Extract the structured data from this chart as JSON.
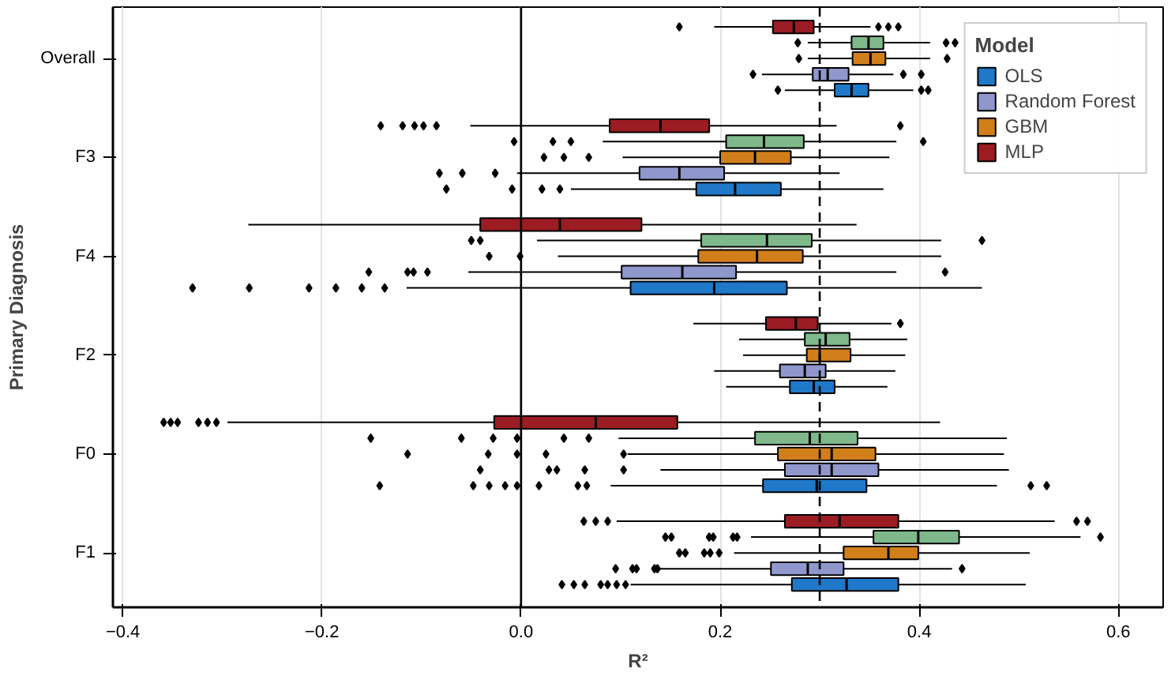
{
  "chart_data": {
    "type": "box",
    "orientation": "horizontal",
    "xlabel": "R²",
    "ylabel": "Primary Diagnosis",
    "legend_title": "Model",
    "legend": "top right",
    "grid": "x",
    "categories": [
      "Overall",
      "F3",
      "F4",
      "F2",
      "F0",
      "F1"
    ],
    "xlim": [
      -0.41,
      0.645
    ],
    "xticks": [
      -0.4,
      -0.2,
      {
        "value": 0,
        "label": "0.0"
      },
      0.2,
      0.4,
      0.6
    ],
    "ref_lines": [
      {
        "axis": "x",
        "value": 0,
        "color": "#000000",
        "line_style": "solid"
      },
      {
        "axis": "x",
        "value": 0.3,
        "color": "#000000",
        "line_style": "dashed"
      }
    ],
    "series": [
      {
        "name": "OLS",
        "color": "#1f78c8",
        "boxes": [
          {
            "low": 0.265,
            "q1": 0.315,
            "median": 0.332,
            "q3": 0.349,
            "high": 0.394,
            "outliers": [
              0.258,
              0.402,
              0.409
            ]
          },
          {
            "low": 0.05,
            "q1": 0.176,
            "median": 0.215,
            "q3": 0.261,
            "high": 0.364,
            "outliers": [
              -0.075,
              -0.009,
              0.021,
              0.039
            ]
          },
          {
            "low": -0.115,
            "q1": 0.11,
            "median": 0.194,
            "q3": 0.267,
            "high": 0.463,
            "outliers": [
              -0.33,
              -0.273,
              -0.213,
              -0.186,
              -0.16,
              -0.137
            ]
          },
          {
            "low": 0.206,
            "q1": 0.27,
            "median": 0.294,
            "q3": 0.315,
            "high": 0.368
          },
          {
            "low": 0.09,
            "q1": 0.243,
            "median": 0.297,
            "q3": 0.347,
            "high": 0.478,
            "outliers": [
              -0.142,
              -0.048,
              -0.032,
              -0.016,
              -0.004,
              0.018,
              0.057,
              0.066,
              0.512,
              0.528
            ]
          },
          {
            "low": 0.11,
            "q1": 0.272,
            "median": 0.327,
            "q3": 0.379,
            "high": 0.507,
            "outliers": [
              0.041,
              0.053,
              0.064,
              0.08,
              0.087,
              0.096,
              0.105
            ]
          }
        ]
      },
      {
        "name": "Random Forest",
        "color": "#8f97cc",
        "boxes": [
          {
            "low": 0.242,
            "q1": 0.293,
            "median": 0.308,
            "q3": 0.329,
            "high": 0.374,
            "outliers": [
              0.233,
              0.384,
              0.402
            ]
          },
          {
            "low": -0.004,
            "q1": 0.119,
            "median": 0.159,
            "q3": 0.204,
            "high": 0.32,
            "outliers": [
              -0.082,
              -0.059,
              -0.026
            ]
          },
          {
            "low": -0.053,
            "q1": 0.101,
            "median": 0.162,
            "q3": 0.216,
            "high": 0.377,
            "outliers": [
              -0.153,
              -0.114,
              -0.108,
              -0.094,
              0.426
            ]
          },
          {
            "low": 0.194,
            "q1": 0.26,
            "median": 0.285,
            "q3": 0.306,
            "high": 0.376
          },
          {
            "low": 0.14,
            "q1": 0.265,
            "median": 0.312,
            "q3": 0.359,
            "high": 0.49,
            "outliers": [
              -0.041,
              0.028,
              0.036,
              0.064,
              0.103
            ]
          },
          {
            "low": 0.139,
            "q1": 0.251,
            "median": 0.288,
            "q3": 0.324,
            "high": 0.433,
            "outliers": [
              0.095,
              0.112,
              0.116,
              0.134,
              0.137,
              0.443
            ]
          }
        ]
      },
      {
        "name": "GBM",
        "color": "#d17f1b",
        "boxes": [
          {
            "low": 0.288,
            "q1": 0.333,
            "median": 0.351,
            "q3": 0.366,
            "high": 0.411,
            "outliers": [
              0.279,
              0.428
            ]
          },
          {
            "low": 0.102,
            "q1": 0.2,
            "median": 0.235,
            "q3": 0.271,
            "high": 0.37,
            "outliers": [
              0.023,
              0.043,
              0.068
            ]
          },
          {
            "low": 0.037,
            "q1": 0.178,
            "median": 0.237,
            "q3": 0.283,
            "high": 0.422,
            "outliers": [
              -0.032,
              -0.001
            ]
          },
          {
            "low": 0.223,
            "q1": 0.287,
            "median": 0.3,
            "q3": 0.331,
            "high": 0.386
          },
          {
            "low": 0.107,
            "q1": 0.258,
            "median": 0.312,
            "q3": 0.356,
            "high": 0.485,
            "outliers": [
              -0.114,
              -0.033,
              -0.004,
              0.025,
              0.103
            ]
          },
          {
            "low": 0.214,
            "q1": 0.324,
            "median": 0.369,
            "q3": 0.399,
            "high": 0.511,
            "outliers": [
              0.159,
              0.165,
              0.184,
              0.19,
              0.199
            ]
          }
        ]
      },
      {
        "color": "#7fb88a",
        "boxes": [
          {
            "low": 0.288,
            "q1": 0.332,
            "median": 0.349,
            "q3": 0.364,
            "high": 0.411,
            "outliers": [
              0.278,
              0.427,
              0.436
            ]
          },
          {
            "low": 0.082,
            "q1": 0.206,
            "median": 0.244,
            "q3": 0.284,
            "high": 0.377,
            "outliers": [
              -0.007,
              0.032,
              0.05,
              0.404
            ]
          },
          {
            "low": 0.016,
            "q1": 0.181,
            "median": 0.247,
            "q3": 0.292,
            "high": 0.422,
            "outliers": [
              -0.05,
              -0.041,
              0.463
            ]
          },
          {
            "low": 0.219,
            "q1": 0.285,
            "median": 0.306,
            "q3": 0.33,
            "high": 0.388
          },
          {
            "low": 0.098,
            "q1": 0.235,
            "median": 0.29,
            "q3": 0.338,
            "high": 0.488,
            "outliers": [
              -0.151,
              -0.06,
              -0.028,
              -0.004,
              0.043,
              0.068
            ]
          },
          {
            "low": 0.231,
            "q1": 0.354,
            "median": 0.399,
            "q3": 0.44,
            "high": 0.562,
            "outliers": [
              0.145,
              0.151,
              0.189,
              0.193,
              0.213,
              0.217,
              0.582
            ]
          }
        ]
      },
      {
        "name": "MLP",
        "color": "#9b1c22",
        "boxes": [
          {
            "low": 0.194,
            "q1": 0.253,
            "median": 0.274,
            "q3": 0.294,
            "high": 0.351,
            "outliers": [
              0.159,
              0.359,
              0.369,
              0.379
            ]
          },
          {
            "low": -0.051,
            "q1": 0.089,
            "median": 0.14,
            "q3": 0.189,
            "high": 0.317,
            "outliers": [
              -0.141,
              -0.119,
              -0.107,
              -0.098,
              -0.085,
              0.381
            ]
          },
          {
            "low": -0.274,
            "q1": -0.041,
            "median": 0.039,
            "q3": 0.121,
            "high": 0.337
          },
          {
            "low": 0.173,
            "q1": 0.246,
            "median": 0.276,
            "q3": 0.298,
            "high": 0.372,
            "outliers": [
              0.381
            ]
          },
          {
            "low": -0.295,
            "q1": -0.027,
            "median": 0.075,
            "q3": 0.157,
            "high": 0.421,
            "outliers": [
              -0.359,
              -0.352,
              -0.345,
              -0.324,
              -0.315,
              -0.306
            ]
          },
          {
            "low": 0.096,
            "q1": 0.265,
            "median": 0.32,
            "q3": 0.379,
            "high": 0.536,
            "outliers": [
              0.063,
              0.075,
              0.087,
              0.558,
              0.569
            ]
          }
        ]
      }
    ]
  }
}
